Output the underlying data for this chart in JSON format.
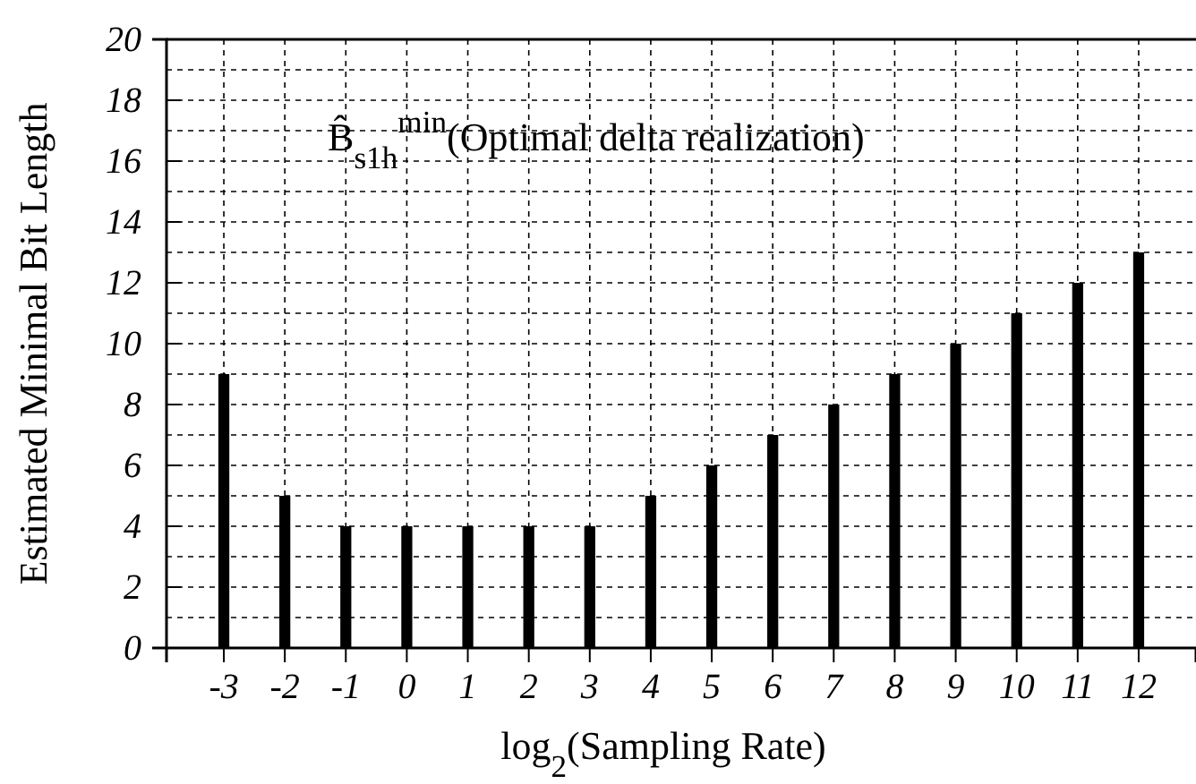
{
  "chart_data": {
    "type": "bar",
    "xlabel": "log$_{2}$(Sampling Rate)",
    "ylabel": "Estimated Minimal Bit Length",
    "categories": [
      "-3",
      "-2",
      "-1",
      "0",
      "1",
      "2",
      "3",
      "4",
      "5",
      "6",
      "7",
      "8",
      "9",
      "10",
      "11",
      "12"
    ],
    "values": [
      9,
      5,
      4,
      4,
      4,
      4,
      4,
      5,
      6,
      7,
      8,
      9,
      10,
      11,
      12,
      13
    ],
    "color": "#000000",
    "ylim": [
      0,
      20
    ],
    "yticks": [
      0,
      {
        "value": 1,
        "label": null
      },
      2,
      {
        "value": 3,
        "label": null
      },
      4,
      {
        "value": 5,
        "label": null
      },
      6,
      {
        "value": 7,
        "label": null
      },
      8,
      {
        "value": 9,
        "label": null
      },
      10,
      {
        "value": 11,
        "label": null
      },
      12,
      {
        "value": 13,
        "label": null
      },
      14,
      {
        "value": 15,
        "label": null
      },
      16,
      {
        "value": 17,
        "label": null
      },
      18,
      {
        "value": 19,
        "label": null
      },
      20
    ],
    "grid": true,
    "annotations": [
      "B̂$_{s1h}$$^{min}$(Optimal delta realization)"
    ]
  }
}
